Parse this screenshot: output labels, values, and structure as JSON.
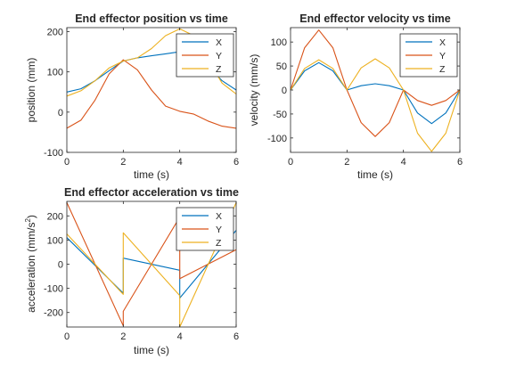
{
  "chart_data": [
    {
      "type": "line",
      "title": "End effector position vs time",
      "xlabel": "time (s)",
      "ylabel": "position (mm)",
      "xlim": [
        0,
        6
      ],
      "ylim": [
        -100,
        210
      ],
      "xticks": [
        0,
        2,
        4,
        6
      ],
      "yticks": [
        -100,
        0,
        100,
        200
      ],
      "grid": false,
      "legend": "top-right",
      "series": [
        {
          "name": "X",
          "color": "#0072BD",
          "x": [
            0,
            0.5,
            1,
            1.5,
            2,
            2.5,
            3,
            3.5,
            4,
            4.5,
            5,
            5.5,
            6
          ],
          "y": [
            50,
            58,
            78,
            103,
            127,
            135,
            140,
            145,
            150,
            145,
            115,
            78,
            55
          ]
        },
        {
          "name": "Y",
          "color": "#D95319",
          "x": [
            0,
            0.5,
            1,
            1.5,
            2,
            2.5,
            3,
            3.5,
            4,
            4.5,
            5,
            5.5,
            6
          ],
          "y": [
            -40,
            -20,
            30,
            95,
            130,
            105,
            55,
            15,
            2,
            -5,
            -22,
            -35,
            -40
          ]
        },
        {
          "name": "Z",
          "color": "#EDB120",
          "x": [
            0,
            0.5,
            1,
            1.5,
            2,
            2.5,
            3,
            3.5,
            4,
            4.5,
            5,
            5.5,
            6
          ],
          "y": [
            40,
            53,
            78,
            110,
            127,
            135,
            158,
            190,
            207,
            190,
            130,
            72,
            45
          ]
        }
      ]
    },
    {
      "type": "line",
      "title": "End effector velocity vs time",
      "xlabel": "time (s)",
      "ylabel": "velocity (mm/s)",
      "xlim": [
        0,
        6
      ],
      "ylim": [
        -130,
        130
      ],
      "xticks": [
        0,
        2,
        4,
        6
      ],
      "yticks": [
        -100,
        -50,
        0,
        50,
        100
      ],
      "grid": false,
      "legend": "top-right",
      "series": [
        {
          "name": "X",
          "color": "#0072BD",
          "x": [
            0,
            0.5,
            1,
            1.5,
            2,
            2.5,
            3,
            3.5,
            4,
            4.5,
            5,
            5.5,
            6
          ],
          "y": [
            0,
            40,
            57,
            40,
            0,
            9,
            13,
            9,
            0,
            -48,
            -70,
            -48,
            0
          ]
        },
        {
          "name": "Y",
          "color": "#D95319",
          "x": [
            0,
            0.5,
            1,
            1.5,
            2,
            2.5,
            3,
            3.5,
            4,
            4.5,
            5,
            5.5,
            6
          ],
          "y": [
            0,
            88,
            125,
            88,
            0,
            -68,
            -97,
            -68,
            0,
            -22,
            -32,
            -22,
            0
          ]
        },
        {
          "name": "Z",
          "color": "#EDB120",
          "x": [
            0,
            0.5,
            1,
            1.5,
            2,
            2.5,
            3,
            3.5,
            4,
            4.5,
            5,
            5.5,
            6
          ],
          "y": [
            0,
            45,
            63,
            45,
            0,
            46,
            65,
            46,
            0,
            -90,
            -128,
            -90,
            0
          ]
        }
      ]
    },
    {
      "type": "line",
      "title": "End effector acceleration vs time",
      "xlabel": "time (s)",
      "ylabel": "acceleration (mm/s",
      "ylabel_superscript": "2",
      "ylabel_suffix": ")",
      "xlim": [
        0,
        6
      ],
      "ylim": [
        -260,
        260
      ],
      "xticks": [
        0,
        2,
        4,
        6
      ],
      "yticks": [
        -200,
        -100,
        0,
        100,
        200
      ],
      "grid": false,
      "legend": "top-right",
      "series": [
        {
          "name": "X",
          "color": "#0072BD",
          "x": [
            0,
            2,
            2,
            4,
            4,
            6
          ],
          "y": [
            110,
            -120,
            25,
            -25,
            -140,
            140
          ]
        },
        {
          "name": "Y",
          "color": "#D95319",
          "x": [
            0,
            2,
            2,
            4,
            4,
            6
          ],
          "y": [
            255,
            -255,
            -195,
            195,
            -60,
            60
          ]
        },
        {
          "name": "Z",
          "color": "#EDB120",
          "x": [
            0,
            2,
            2,
            4,
            4,
            6
          ],
          "y": [
            125,
            -125,
            130,
            -130,
            -260,
            255
          ]
        }
      ]
    }
  ]
}
